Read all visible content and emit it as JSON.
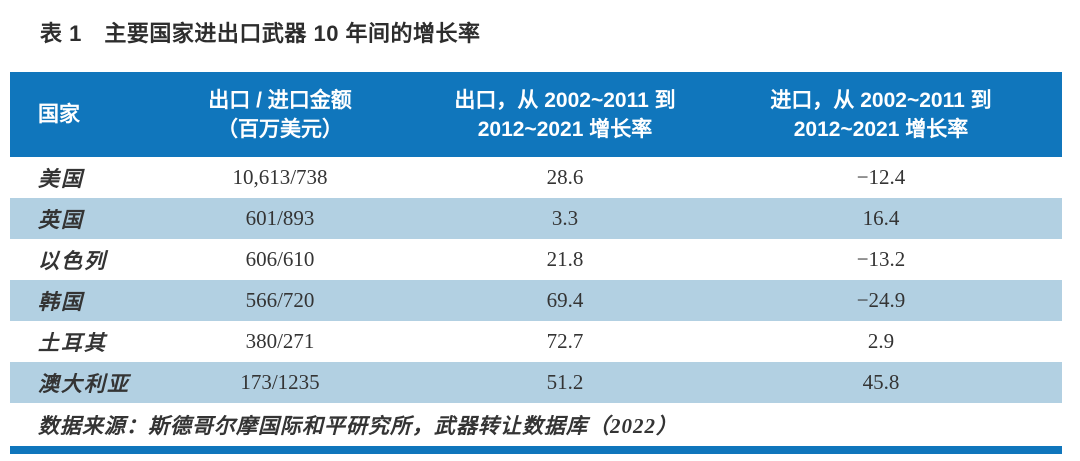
{
  "page": {
    "title": "表 1　主要国家进出口武器 10 年间的增长率"
  },
  "table": {
    "header": {
      "country": "国家",
      "amount_line1": "出口 / 进口金额",
      "amount_line2": "（百万美元）",
      "export_line1": "出口，从 2002~2011 到",
      "export_line2": "2012~2021 增长率",
      "import_line1": "进口，从 2002~2011 到",
      "import_line2": "2012~2021 增长率"
    },
    "rows": [
      {
        "country": "美国",
        "amount": "10,613/738",
        "export_growth": "28.6",
        "import_growth": "−12.4"
      },
      {
        "country": "英国",
        "amount": "601/893",
        "export_growth": "3.3",
        "import_growth": "16.4"
      },
      {
        "country": "以色列",
        "amount": "606/610",
        "export_growth": "21.8",
        "import_growth": "−13.2"
      },
      {
        "country": "韩国",
        "amount": "566/720",
        "export_growth": "69.4",
        "import_growth": "−24.9"
      },
      {
        "country": "土耳其",
        "amount": "380/271",
        "export_growth": "72.7",
        "import_growth": "2.9"
      },
      {
        "country": "澳大利亚",
        "amount": "173/1235",
        "export_growth": "51.2",
        "import_growth": "45.8"
      }
    ],
    "source": "数据来源：斯德哥尔摩国际和平研究所，武器转让数据库（2022）"
  },
  "colors": {
    "header_bg": "#1076BC",
    "alt_row_bg": "#B2D0E2",
    "header_text": "#FFFFFF",
    "body_text": "#343434",
    "bottom_bar": "#1076BC"
  },
  "chart_data": {
    "type": "table",
    "title": "表 1　主要国家进出口武器 10 年间的增长率",
    "columns": [
      "国家",
      "出口 / 进口金额（百万美元）",
      "出口，从 2002~2011 到 2012~2021 增长率",
      "进口，从 2002~2011 到 2012~2021 增长率"
    ],
    "rows": [
      [
        "美国",
        "10,613/738",
        28.6,
        -12.4
      ],
      [
        "英国",
        "601/893",
        3.3,
        16.4
      ],
      [
        "以色列",
        "606/610",
        21.8,
        -13.2
      ],
      [
        "韩国",
        "566/720",
        69.4,
        -24.9
      ],
      [
        "土耳其",
        "380/271",
        72.7,
        2.9
      ],
      [
        "澳大利亚",
        "173/1235",
        51.2,
        45.8
      ]
    ],
    "source_note": "数据来源：斯德哥尔摩国际和平研究所，武器转让数据库（2022）"
  }
}
